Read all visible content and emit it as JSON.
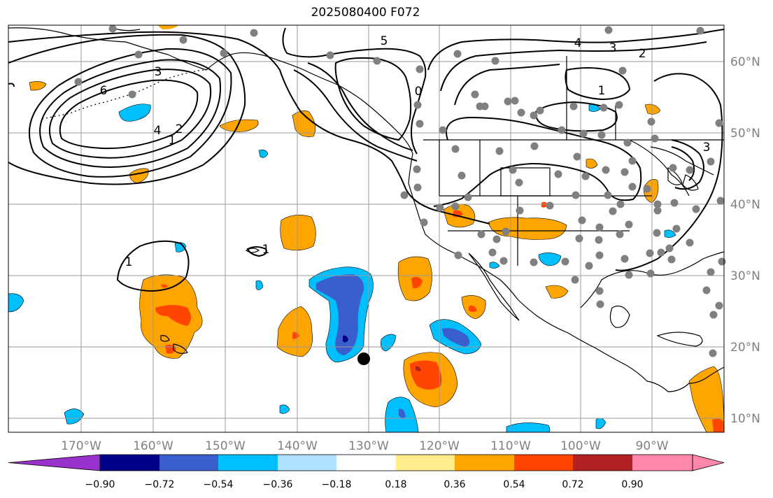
{
  "title": "2025080400 F072",
  "map": {
    "lon_labels": [
      "170°W",
      "160°W",
      "150°W",
      "140°W",
      "130°W",
      "120°W",
      "110°W",
      "100°W",
      "90°W"
    ],
    "lat_labels": [
      "60°N",
      "50°N",
      "40°N",
      "30°N",
      "20°N",
      "10°N"
    ],
    "gridline_color": "#999999",
    "contour_labels": [
      "6",
      "5",
      "4",
      "4",
      "3",
      "3",
      "2",
      "2",
      "1",
      "1",
      "1",
      "1",
      "0",
      "3"
    ],
    "station_marker_color": "#808080",
    "storm_marker_color": "#000000"
  },
  "colorbar": {
    "tick_labels": [
      "−0.90",
      "−0.72",
      "−0.54",
      "−0.36",
      "−0.18",
      "0.18",
      "0.36",
      "0.54",
      "0.72",
      "0.90"
    ],
    "colors": [
      "#9932cc",
      "#00008b",
      "#3a5fcd",
      "#00bfff",
      "#b0e2ff",
      "#ffffff",
      "#ffec8b",
      "#ffa500",
      "#ff4500",
      "#b22222",
      "#ff88aa"
    ]
  }
}
